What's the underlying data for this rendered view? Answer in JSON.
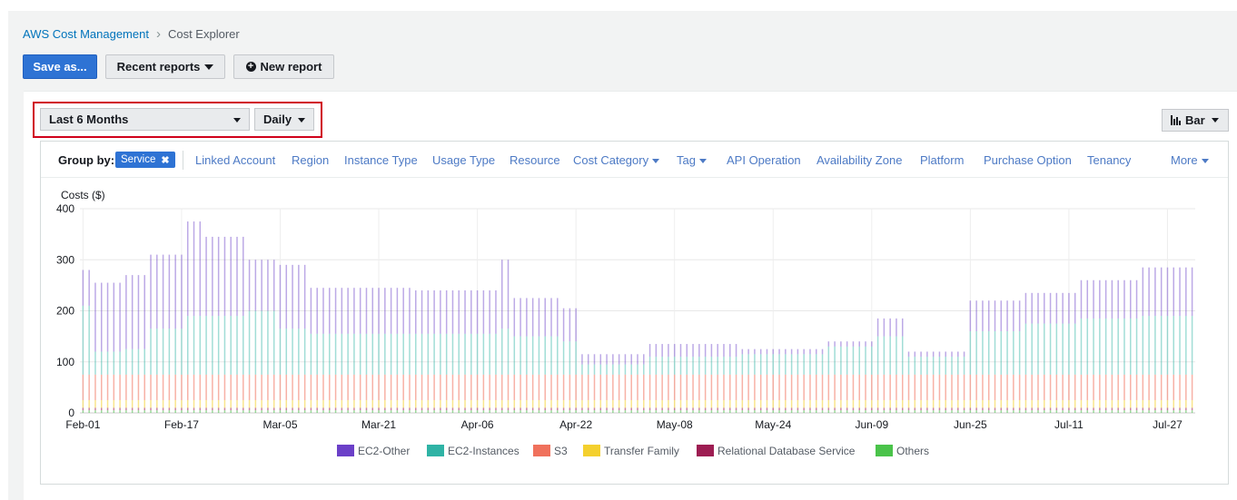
{
  "breadcrumb": {
    "root": "AWS Cost Management",
    "current": "Cost Explorer"
  },
  "toolbar": {
    "save_label": "Save as...",
    "recent_label": "Recent reports",
    "new_label": "New report"
  },
  "filters": {
    "date_range": "Last 6 Months",
    "granularity": "Daily",
    "chart_type": "Bar"
  },
  "group_by": {
    "label": "Group by:",
    "selected": "Service",
    "options": [
      "Linked Account",
      "Region",
      "Instance Type",
      "Usage Type",
      "Resource",
      "Cost Category",
      "Tag",
      "API Operation",
      "Availability Zone",
      "Platform",
      "Purchase Option",
      "Tenancy"
    ],
    "dropdown_options": [
      "Cost Category",
      "Tag"
    ],
    "more_label": "More"
  },
  "colors": {
    "primary_button": "#2e73d4",
    "link": "#0073bb",
    "highlight": "#d0021b"
  },
  "chart_data": {
    "type": "bar",
    "stacked": true,
    "ylabel": "Costs ($)",
    "ylim": [
      0,
      400
    ],
    "yticks": [
      0,
      100,
      200,
      300,
      400
    ],
    "xtick_labels": [
      "Feb-01",
      "Feb-17",
      "Mar-05",
      "Mar-21",
      "Apr-06",
      "Apr-22",
      "May-08",
      "May-24",
      "Jun-09",
      "Jun-25",
      "Jul-11",
      "Jul-27"
    ],
    "grid": true,
    "legend_position": "bottom",
    "series": [
      {
        "name": "EC2-Other",
        "color": "#6b40c8"
      },
      {
        "name": "EC2-Instances",
        "color": "#2fb3a5"
      },
      {
        "name": "S3",
        "color": "#f0715c"
      },
      {
        "name": "Transfer Family",
        "color": "#f4d02e"
      },
      {
        "name": "Relational Database Service",
        "color": "#9d1d52"
      },
      {
        "name": "Others",
        "color": "#4ac34a"
      }
    ],
    "segments": [
      {
        "start": "Feb-01",
        "end": "Feb-02",
        "total": 280,
        "ec2_instances": 210
      },
      {
        "start": "Feb-03",
        "end": "Feb-07",
        "total": 255,
        "ec2_instances": 120
      },
      {
        "start": "Feb-08",
        "end": "Feb-11",
        "total": 270,
        "ec2_instances": 125
      },
      {
        "start": "Feb-12",
        "end": "Feb-17",
        "total": 310,
        "ec2_instances": 165
      },
      {
        "start": "Feb-18",
        "end": "Feb-20",
        "total": 375,
        "ec2_instances": 190
      },
      {
        "start": "Feb-21",
        "end": "Feb-27",
        "total": 345,
        "ec2_instances": 190
      },
      {
        "start": "Feb-28",
        "end": "Mar-04",
        "total": 300,
        "ec2_instances": 200
      },
      {
        "start": "Mar-05",
        "end": "Mar-09",
        "total": 290,
        "ec2_instances": 165
      },
      {
        "start": "Mar-10",
        "end": "Mar-26",
        "total": 245,
        "ec2_instances": 155
      },
      {
        "start": "Mar-27",
        "end": "Apr-09",
        "total": 240,
        "ec2_instances": 155
      },
      {
        "start": "Apr-10",
        "end": "Apr-11",
        "total": 300,
        "ec2_instances": 165
      },
      {
        "start": "Apr-12",
        "end": "Apr-19",
        "total": 225,
        "ec2_instances": 150
      },
      {
        "start": "Apr-20",
        "end": "Apr-22",
        "total": 205,
        "ec2_instances": 140
      },
      {
        "start": "Apr-23",
        "end": "May-03",
        "total": 115,
        "ec2_instances": 95
      },
      {
        "start": "May-04",
        "end": "May-18",
        "total": 135,
        "ec2_instances": 110
      },
      {
        "start": "May-19",
        "end": "Jun-01",
        "total": 125,
        "ec2_instances": 115
      },
      {
        "start": "Jun-02",
        "end": "Jun-09",
        "total": 140,
        "ec2_instances": 130
      },
      {
        "start": "Jun-10",
        "end": "Jun-14",
        "total": 185,
        "ec2_instances": 150
      },
      {
        "start": "Jun-15",
        "end": "Jun-24",
        "total": 120,
        "ec2_instances": 110
      },
      {
        "start": "Jun-25",
        "end": "Jul-03",
        "total": 220,
        "ec2_instances": 160
      },
      {
        "start": "Jul-04",
        "end": "Jul-12",
        "total": 235,
        "ec2_instances": 175
      },
      {
        "start": "Jul-13",
        "end": "Jul-22",
        "total": 260,
        "ec2_instances": 185
      },
      {
        "start": "Jul-23",
        "end": "Jul-31",
        "total": 285,
        "ec2_instances": 190
      }
    ],
    "note_other_series": {
      "s3": 50,
      "transfer_family": 15,
      "rds": 5,
      "others": 5
    }
  }
}
